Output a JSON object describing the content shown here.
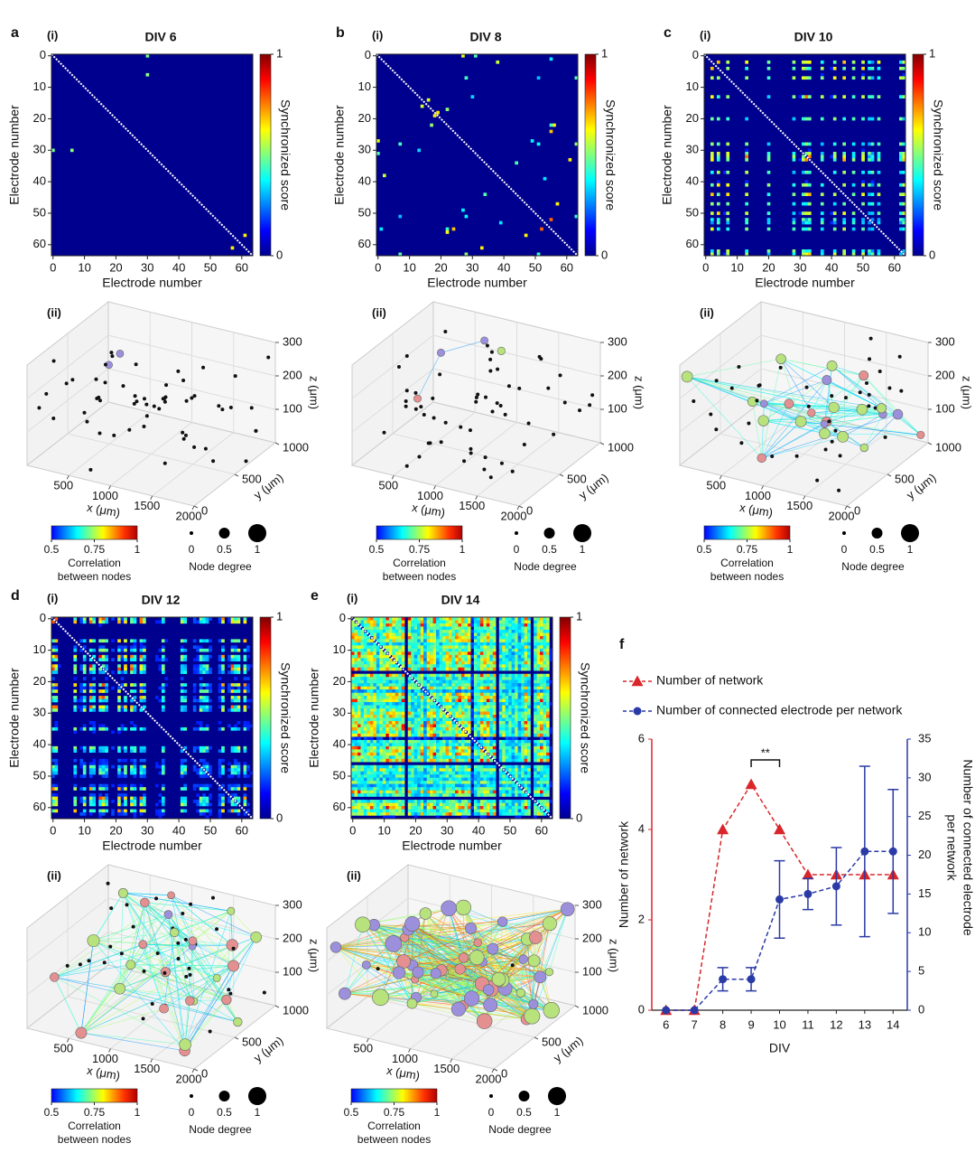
{
  "figure": {
    "heatmap_axes": {
      "xlabel": "Electrode number",
      "ylabel": "Electrode number",
      "ticks": [
        0,
        10,
        20,
        30,
        40,
        50,
        60
      ],
      "colorbar_label": "Synchronized score",
      "colorbar_ticks": [
        0,
        1
      ]
    },
    "network_axes": {
      "xlabel": "x (μm)",
      "ylabel": "y (μm)",
      "zlabel": "z (μm)",
      "xticks": [
        500,
        1000,
        1500,
        2000
      ],
      "yticks": [
        0,
        500,
        1000
      ],
      "zticks": [
        100,
        200,
        300
      ]
    },
    "network_legend": {
      "colorbar_ticks": [
        0.5,
        0.75,
        1
      ],
      "colorbar_label": [
        "Correlation",
        "between nodes"
      ],
      "degree_ticks": [
        0,
        0.5,
        1
      ],
      "degree_label": "Node degree"
    },
    "panels": [
      {
        "letter": "a",
        "sub_i": "(i)",
        "sub_ii": "(ii)",
        "title": "DIV 6"
      },
      {
        "letter": "b",
        "sub_i": "(i)",
        "sub_ii": "(ii)",
        "title": "DIV 8"
      },
      {
        "letter": "c",
        "sub_i": "(i)",
        "sub_ii": "(ii)",
        "title": "DIV 10"
      },
      {
        "letter": "d",
        "sub_i": "(i)",
        "sub_ii": "(ii)",
        "title": "DIV 12"
      },
      {
        "letter": "e",
        "sub_i": "(i)",
        "sub_ii": "(ii)",
        "title": "DIV 14"
      }
    ]
  },
  "chart_data": {
    "type": "line",
    "letter": "f",
    "xlabel": "DIV",
    "ylabel": "Number of network",
    "y2label": [
      "Number of connected electrode",
      "per network"
    ],
    "annotation": "**",
    "legend": "top-left",
    "x": [
      6,
      7,
      8,
      9,
      10,
      11,
      12,
      13,
      14
    ],
    "xlim": [
      5.5,
      14.5
    ],
    "xticks": [
      6,
      7,
      8,
      9,
      10,
      11,
      12,
      13,
      14
    ],
    "ylim": [
      0,
      6
    ],
    "yticks": [
      0,
      2,
      4,
      6
    ],
    "y2lim": [
      0,
      35
    ],
    "y2ticks": [
      0,
      5,
      10,
      15,
      20,
      25,
      30,
      35
    ],
    "series": [
      {
        "name": "Number of network",
        "color": "#d8262b",
        "values": [
          0,
          0,
          4,
          5,
          4,
          3,
          3,
          3,
          3
        ]
      },
      {
        "name": "Number of connected electrode per network",
        "color": "#2a3aa6",
        "axis": "y2",
        "values": [
          0,
          0,
          4,
          4,
          14.3,
          15,
          16,
          20.5,
          20.5
        ],
        "errors": [
          0,
          0,
          1.5,
          1.5,
          5,
          2,
          5,
          11,
          8
        ]
      }
    ]
  }
}
